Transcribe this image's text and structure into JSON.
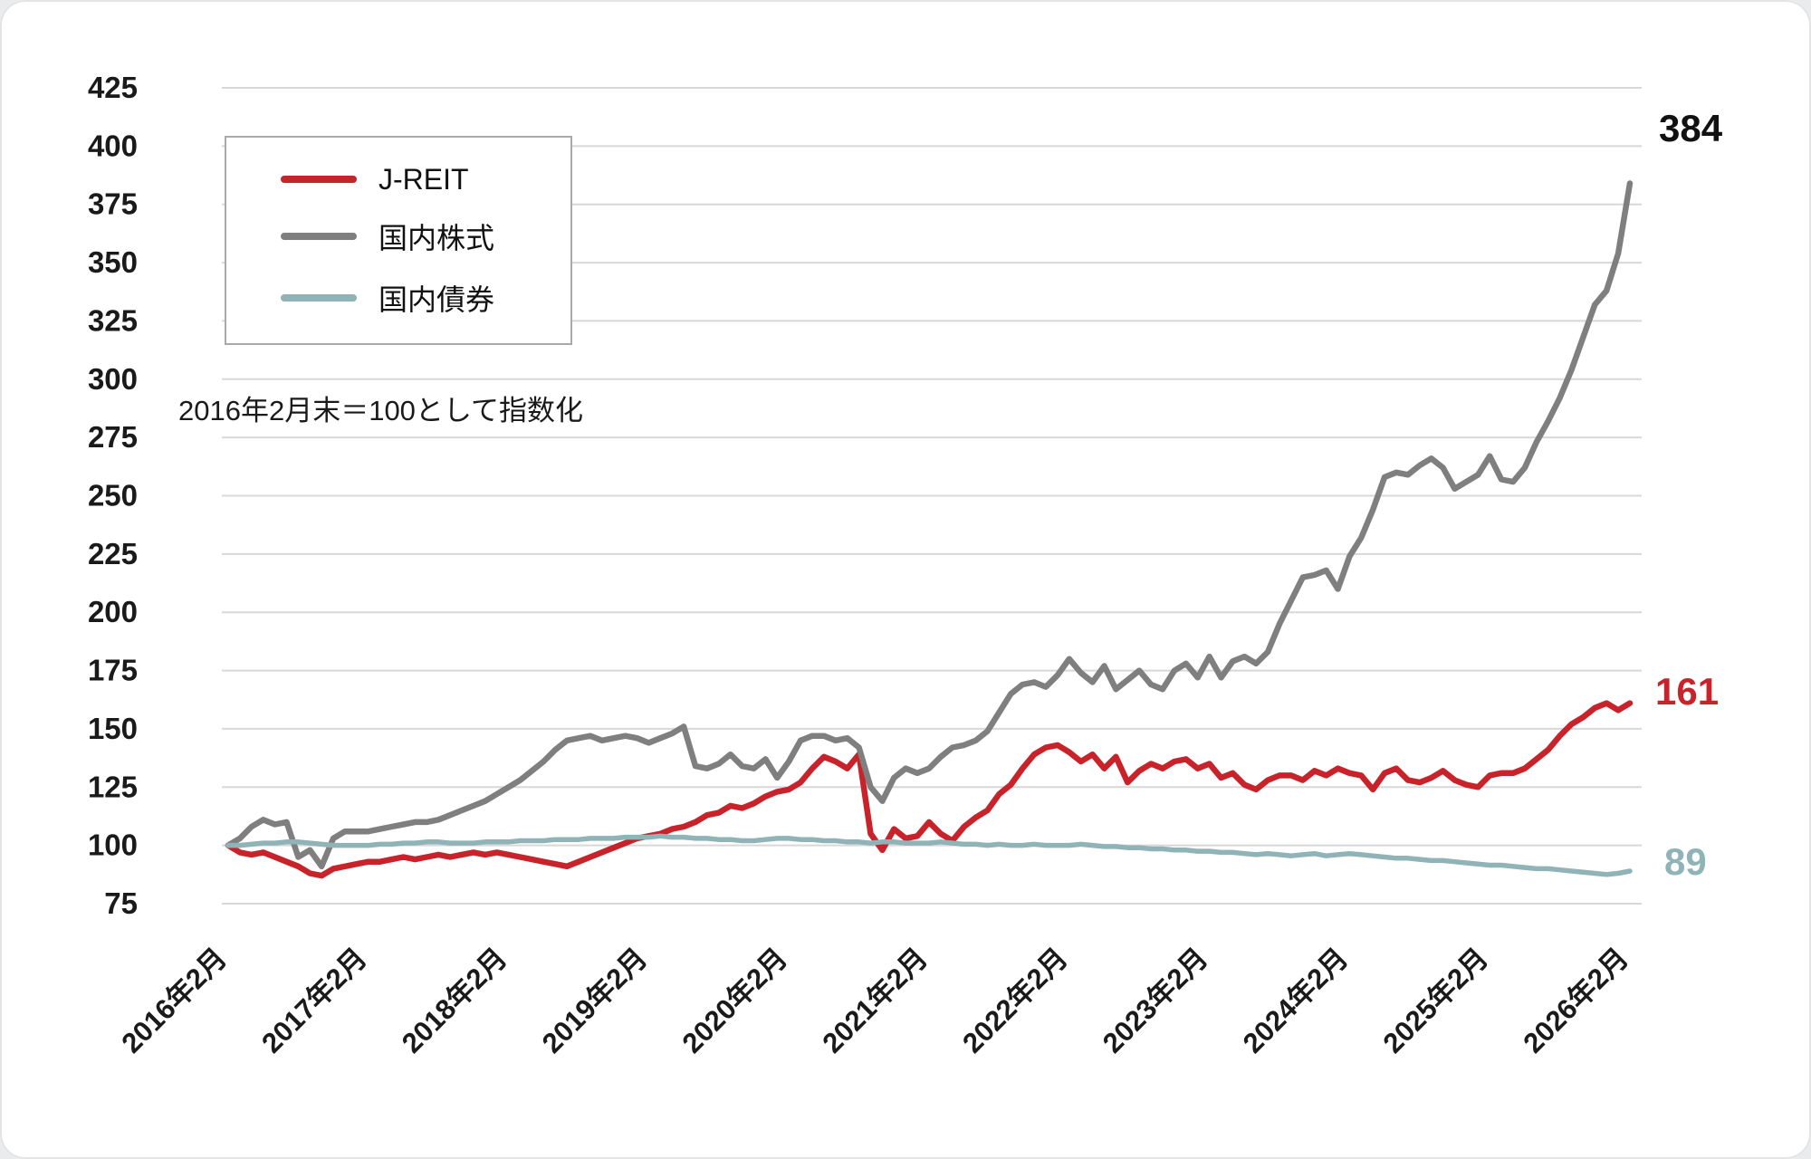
{
  "note": "2016年2月末＝100として指数化",
  "legend": {
    "items": [
      {
        "label": "J-REIT",
        "color": "#c8232a"
      },
      {
        "label": "国内株式",
        "color": "#7f7f7f"
      },
      {
        "label": "国内債券",
        "color": "#8fb3b7"
      }
    ]
  },
  "end_labels": {
    "stock": "384",
    "jreit": "161",
    "bond": "89"
  },
  "colors": {
    "jreit": "#c8232a",
    "stock": "#7f7f7f",
    "bond": "#8fb3b7",
    "grid": "#d8d8d8",
    "text": "#1a1a1a"
  },
  "chart_data": {
    "type": "line",
    "title": "",
    "note": "2016年2月末＝100として指数化",
    "x_frequency": "monthly",
    "x_range_start": "2016年2月",
    "x_range_end": "2026年2月",
    "x_tick_labels": [
      "2016年2月",
      "2017年2月",
      "2018年2月",
      "2019年2月",
      "2020年2月",
      "2021年2月",
      "2022年2月",
      "2023年2月",
      "2024年2月",
      "2025年2月",
      "2026年2月"
    ],
    "y_ticks": [
      75,
      100,
      125,
      150,
      175,
      200,
      225,
      250,
      275,
      300,
      325,
      350,
      375,
      400,
      425
    ],
    "ylim": [
      75,
      425
    ],
    "grid": "horizontal",
    "legend_position": "top-left",
    "series": [
      {
        "name": "J-REIT",
        "color": "#c8232a",
        "end_value": 161,
        "values": [
          100,
          97,
          96,
          97,
          95,
          93,
          91,
          88,
          87,
          90,
          91,
          92,
          93,
          93,
          94,
          95,
          94,
          95,
          96,
          95,
          96,
          97,
          96,
          97,
          96,
          95,
          94,
          93,
          92,
          91,
          93,
          95,
          97,
          99,
          101,
          103,
          104,
          105,
          107,
          108,
          110,
          113,
          114,
          117,
          116,
          118,
          121,
          123,
          124,
          127,
          133,
          138,
          136,
          133,
          139,
          105,
          98,
          107,
          103,
          104,
          110,
          105,
          102,
          108,
          112,
          115,
          122,
          126,
          133,
          139,
          142,
          143,
          140,
          136,
          139,
          133,
          138,
          127,
          132,
          135,
          133,
          136,
          137,
          133,
          135,
          129,
          131,
          126,
          124,
          128,
          130,
          130,
          128,
          132,
          130,
          133,
          131,
          130,
          124,
          131,
          133,
          128,
          127,
          129,
          132,
          128,
          126,
          125,
          130,
          131,
          131,
          133,
          137,
          141,
          147,
          152,
          155,
          159,
          161,
          158,
          161
        ]
      },
      {
        "name": "国内株式",
        "color": "#7f7f7f",
        "end_value": 384,
        "values": [
          100,
          103,
          108,
          111,
          109,
          110,
          95,
          98,
          91,
          103,
          106,
          106,
          106,
          107,
          108,
          109,
          110,
          110,
          111,
          113,
          115,
          117,
          119,
          122,
          125,
          128,
          132,
          136,
          141,
          145,
          146,
          147,
          145,
          146,
          147,
          146,
          144,
          146,
          148,
          151,
          134,
          133,
          135,
          139,
          134,
          133,
          137,
          129,
          136,
          145,
          147,
          147,
          145,
          146,
          142,
          125,
          119,
          129,
          133,
          131,
          133,
          138,
          142,
          143,
          145,
          149,
          157,
          165,
          169,
          170,
          168,
          173,
          180,
          174,
          170,
          177,
          167,
          171,
          175,
          169,
          167,
          175,
          178,
          172,
          181,
          172,
          179,
          181,
          178,
          183,
          195,
          205,
          215,
          216,
          218,
          210,
          224,
          232,
          244,
          258,
          260,
          259,
          263,
          266,
          262,
          253,
          256,
          259,
          267,
          257,
          256,
          262,
          273,
          282,
          292,
          304,
          318,
          332,
          338,
          354,
          384
        ]
      },
      {
        "name": "国内債券",
        "color": "#8fb3b7",
        "end_value": 89,
        "values": [
          100,
          100,
          100.5,
          101,
          101,
          101.5,
          101.5,
          101,
          100.5,
          100,
          100,
          100,
          100,
          100.5,
          100.5,
          101,
          101,
          101.5,
          101.5,
          101,
          101,
          101,
          101.5,
          101.5,
          101.5,
          102,
          102,
          102,
          102.5,
          102.5,
          102.5,
          103,
          103,
          103,
          103.5,
          103.5,
          103.5,
          104,
          103.5,
          103.5,
          103,
          103,
          102.5,
          102.5,
          102,
          102,
          102.5,
          103,
          103,
          102.5,
          102.5,
          102,
          102,
          101.5,
          101.5,
          101,
          101.5,
          101.5,
          101,
          101,
          101,
          101.5,
          101,
          100.5,
          100.5,
          100,
          100.5,
          100,
          100,
          100.5,
          100,
          100,
          100,
          100.5,
          100,
          99.5,
          99.5,
          99,
          99,
          98.5,
          98.5,
          98,
          98,
          97.5,
          97.5,
          97,
          97,
          96.5,
          96,
          96.5,
          96,
          95.5,
          96,
          96.5,
          95.5,
          96,
          96.5,
          96,
          95.5,
          95,
          94.5,
          94.5,
          94,
          93.5,
          93.5,
          93,
          92.5,
          92,
          91.5,
          91.5,
          91,
          90.5,
          90,
          90,
          89.5,
          89,
          88.5,
          88,
          87.5,
          88,
          89
        ]
      }
    ]
  }
}
